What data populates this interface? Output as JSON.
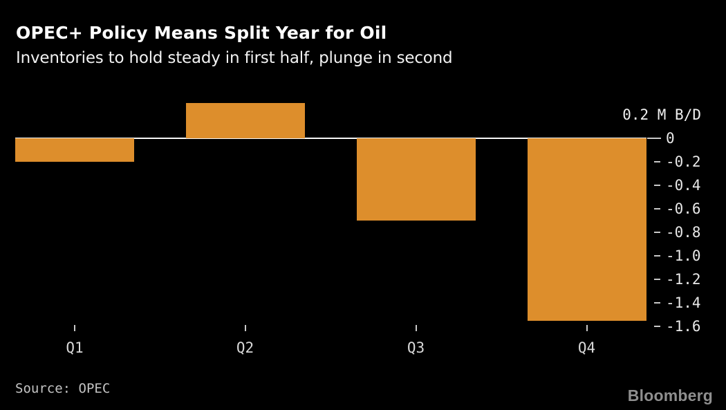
{
  "header": {
    "title": "OPEC+ Policy Means Split Year for Oil",
    "subtitle": "Inventories to hold steady in first half, plunge in second"
  },
  "chart_data": {
    "type": "bar",
    "title": "OPEC+ Policy Means Split Year for Oil",
    "subtitle": "Inventories to hold steady in first half, plunge in second",
    "categories": [
      "Q1",
      "Q2",
      "Q3",
      "Q4"
    ],
    "values": [
      -0.2,
      0.3,
      -0.7,
      -1.55
    ],
    "xlabel": "",
    "ylabel": "M B/D",
    "ylim": [
      -1.6,
      0.3
    ],
    "grid": false,
    "legend": "none",
    "bar_color": "#DD8E2C",
    "background_color": "#000000",
    "y_axis": {
      "side": "right",
      "top_label": "0.2 M B/D",
      "top_label_value": 0.2,
      "ticks": [
        {
          "label": "0",
          "value": 0,
          "style": "zero"
        },
        {
          "label": "-0.2",
          "value": -0.2
        },
        {
          "label": "-0.4",
          "value": -0.4
        },
        {
          "label": "-0.6",
          "value": -0.6
        },
        {
          "label": "-0.8",
          "value": -0.8
        },
        {
          "label": "-1.0",
          "value": -1.0
        },
        {
          "label": "-1.2",
          "value": -1.2
        },
        {
          "label": "-1.4",
          "value": -1.4
        },
        {
          "label": "-1.6",
          "value": -1.6
        }
      ]
    }
  },
  "footer": {
    "source": "Source: OPEC",
    "brand": "Bloomberg"
  }
}
